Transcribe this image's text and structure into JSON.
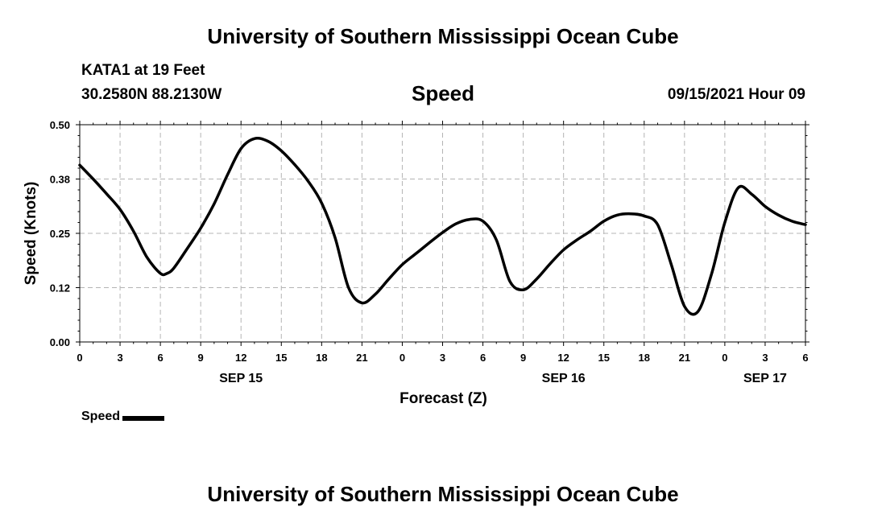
{
  "header": {
    "organization": "University of Southern Mississippi Ocean Cube",
    "station": "KATA1 at 19 Feet",
    "coordinates": "30.2580N  88.2130W",
    "title": "Speed",
    "datetime": "09/15/2021 Hour 09"
  },
  "footer": {
    "organization": "University of Southern Mississippi Ocean Cube"
  },
  "legend": {
    "label": "Speed"
  },
  "chart_data": {
    "type": "line",
    "title": "Speed",
    "xlabel": "Forecast (Z)",
    "ylabel": "Speed (Knots)",
    "x_unit": "hours since 2021-09-15 00Z",
    "xlim": [
      0,
      54
    ],
    "ylim": [
      0,
      0.5
    ],
    "grid": true,
    "legend_position": "below-left",
    "x_ticks": [
      {
        "x": 0,
        "label": "0"
      },
      {
        "x": 3,
        "label": "3"
      },
      {
        "x": 6,
        "label": "6"
      },
      {
        "x": 9,
        "label": "9"
      },
      {
        "x": 12,
        "label": "12"
      },
      {
        "x": 15,
        "label": "15"
      },
      {
        "x": 18,
        "label": "18"
      },
      {
        "x": 21,
        "label": "21"
      },
      {
        "x": 24,
        "label": "0"
      },
      {
        "x": 27,
        "label": "3"
      },
      {
        "x": 30,
        "label": "6"
      },
      {
        "x": 33,
        "label": "9"
      },
      {
        "x": 36,
        "label": "12"
      },
      {
        "x": 39,
        "label": "15"
      },
      {
        "x": 42,
        "label": "18"
      },
      {
        "x": 45,
        "label": "21"
      },
      {
        "x": 48,
        "label": "0"
      },
      {
        "x": 51,
        "label": "3"
      },
      {
        "x": 54,
        "label": "6"
      }
    ],
    "date_labels": [
      {
        "x": 12,
        "label": "SEP 15"
      },
      {
        "x": 36,
        "label": "SEP 16"
      },
      {
        "x": 51,
        "label": "SEP 17"
      }
    ],
    "y_ticks": [
      {
        "y": 0.0,
        "label": "0.00"
      },
      {
        "y": 0.125,
        "label": "0.12"
      },
      {
        "y": 0.25,
        "label": "0.25"
      },
      {
        "y": 0.375,
        "label": "0.38"
      },
      {
        "y": 0.5,
        "label": "0.50"
      }
    ],
    "series": [
      {
        "name": "Speed",
        "color": "#000000",
        "x": [
          0,
          1,
          2,
          3,
          4,
          5,
          6,
          6.5,
          7,
          8,
          9,
          10,
          11,
          12,
          13,
          14,
          15,
          16,
          17,
          18,
          19,
          20,
          21,
          22,
          23,
          24,
          25,
          26,
          27,
          28,
          29,
          30,
          31,
          32,
          33,
          34,
          35,
          36,
          37,
          38,
          39,
          40,
          41,
          42,
          43,
          44,
          45,
          46,
          47,
          48,
          49,
          50,
          51,
          52,
          53,
          54
        ],
        "y": [
          0.407,
          0.375,
          0.341,
          0.305,
          0.255,
          0.195,
          0.158,
          0.158,
          0.17,
          0.215,
          0.262,
          0.318,
          0.385,
          0.445,
          0.468,
          0.462,
          0.44,
          0.408,
          0.37,
          0.32,
          0.24,
          0.125,
          0.09,
          0.11,
          0.145,
          0.178,
          0.203,
          0.228,
          0.252,
          0.272,
          0.282,
          0.278,
          0.235,
          0.14,
          0.12,
          0.145,
          0.18,
          0.212,
          0.235,
          0.255,
          0.278,
          0.292,
          0.295,
          0.29,
          0.27,
          0.18,
          0.082,
          0.07,
          0.155,
          0.275,
          0.355,
          0.34,
          0.312,
          0.292,
          0.278,
          0.27
        ]
      }
    ]
  }
}
